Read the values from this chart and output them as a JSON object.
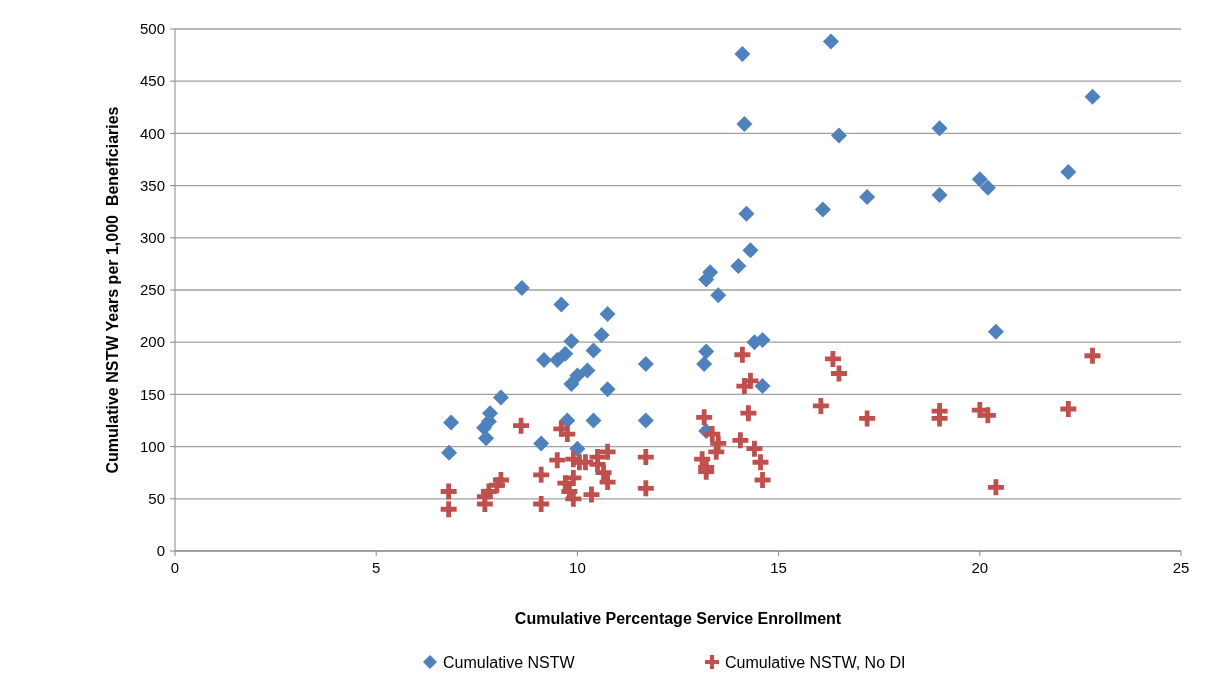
{
  "chart_data": {
    "type": "scatter",
    "xlabel": "Cumulative Percentage Service Enrollment",
    "ylabel": "Cumulative NSTW Years per 1,000  Beneficiaries",
    "xlim": [
      0,
      25
    ],
    "xticks": [
      0,
      5,
      10,
      15,
      20,
      25
    ],
    "ylim": [
      0,
      500
    ],
    "yticks": [
      0,
      50,
      100,
      150,
      200,
      250,
      300,
      350,
      400,
      450,
      500
    ],
    "grid": "y",
    "legend": "bottom",
    "series": [
      {
        "name": "Cumulative NSTW",
        "color": "#4f81bd",
        "marker": "diamond",
        "x": [
          6.86,
          6.81,
          7.68,
          7.73,
          7.8,
          7.83,
          8.1,
          8.62,
          9.1,
          9.17,
          9.6,
          9.5,
          9.7,
          9.85,
          9.85,
          10.0,
          10.25,
          9.75,
          10.0,
          10.4,
          10.6,
          10.75,
          10.75,
          10.4,
          11.7,
          11.7,
          13.2,
          13.3,
          13.2,
          13.15,
          13.2,
          13.5,
          14.0,
          14.3,
          14.2,
          14.1,
          14.15,
          14.4,
          14.6,
          14.6,
          16.3,
          16.5,
          16.1,
          17.2,
          19.0,
          19.0,
          20.0,
          20.2,
          20.4,
          22.2,
          22.8
        ],
        "values": [
          123,
          94,
          118,
          108,
          124,
          132,
          147,
          252,
          103,
          183,
          236,
          183,
          189,
          201,
          160,
          168,
          173,
          125,
          98,
          192,
          207,
          227,
          155,
          125,
          179,
          125,
          260,
          267,
          191,
          179,
          115,
          245,
          273,
          288,
          323,
          476,
          409,
          200,
          202,
          158,
          488,
          398,
          327,
          339,
          405,
          341,
          356,
          348,
          210,
          363,
          435
        ]
      },
      {
        "name": "Cumulative NSTW, No DI",
        "color": "#c0504d",
        "marker": "cross",
        "x": [
          6.8,
          6.8,
          7.7,
          7.7,
          7.8,
          8.0,
          8.1,
          8.6,
          9.1,
          9.1,
          9.5,
          9.6,
          9.75,
          9.7,
          9.8,
          9.9,
          9.9,
          9.9,
          10.05,
          10.2,
          10.35,
          10.5,
          10.5,
          10.65,
          10.75,
          10.75,
          11.7,
          11.7,
          13.15,
          13.1,
          13.2,
          13.2,
          13.35,
          13.45,
          13.5,
          14.05,
          14.1,
          14.15,
          14.3,
          14.25,
          14.4,
          14.55,
          14.6,
          16.05,
          16.35,
          16.5,
          17.2,
          19.0,
          19.0,
          20.0,
          20.2,
          20.4,
          22.2,
          22.8
        ],
        "values": [
          57,
          40,
          52,
          45,
          57,
          63,
          68,
          120,
          45,
          73,
          87,
          117,
          112,
          65,
          57,
          70,
          50,
          88,
          85,
          85,
          54,
          90,
          83,
          75,
          95,
          66,
          90,
          60,
          128,
          88,
          80,
          76,
          112,
          95,
          103,
          106,
          188,
          158,
          163,
          132,
          98,
          85,
          68,
          139,
          184,
          170,
          127,
          134,
          127,
          135,
          130,
          61,
          136,
          187
        ]
      }
    ]
  }
}
